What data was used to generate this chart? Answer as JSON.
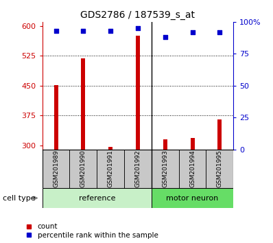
{
  "title": "GDS2786 / 187539_s_at",
  "samples": [
    "GSM201989",
    "GSM201990",
    "GSM201991",
    "GSM201992",
    "GSM201993",
    "GSM201994",
    "GSM201995"
  ],
  "counts": [
    452,
    518,
    296,
    575,
    315,
    318,
    365
  ],
  "percentile_ranks": [
    93,
    93,
    93,
    95,
    88,
    92,
    92
  ],
  "n_reference": 4,
  "n_motor": 3,
  "bar_color": "#cc0000",
  "dot_color": "#0000cc",
  "ylim_left": [
    290,
    610
  ],
  "ylim_right": [
    0,
    100
  ],
  "yticks_left": [
    300,
    375,
    450,
    525,
    600
  ],
  "yticks_right": [
    0,
    25,
    50,
    75,
    100
  ],
  "ytick_right_labels": [
    "0",
    "25",
    "50",
    "75",
    "100%"
  ],
  "grid_values": [
    375,
    450,
    525
  ],
  "ylabel_left_color": "#cc0000",
  "ylabel_right_color": "#0000cc",
  "bar_width": 0.15,
  "reference_color": "#c8f0c8",
  "motor_color": "#66dd66",
  "label_bg_color": "#c8c8c8",
  "cell_type_label": "cell type",
  "reference_label": "reference",
  "motor_neuron_label": "motor neuron",
  "legend_count_label": "count",
  "legend_percentile_label": "percentile rank within the sample",
  "title_fontsize": 10,
  "tick_fontsize": 8,
  "label_fontsize": 8,
  "legend_fontsize": 7.5
}
